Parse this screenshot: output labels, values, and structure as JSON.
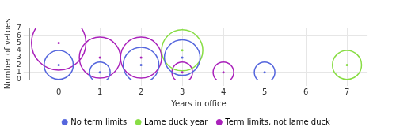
{
  "chart_data": {
    "type": "bubble",
    "x_label": "Years in office",
    "y_label": "Number of vetoes",
    "xlim": [
      -0.7,
      7.5
    ],
    "ylim": [
      0,
      7
    ],
    "xticks": [
      0,
      1,
      2,
      3,
      4,
      5,
      6,
      7
    ],
    "yticks": [
      0,
      1,
      2,
      3,
      4,
      5,
      6,
      7
    ],
    "grid": true,
    "legend": "bottom",
    "series": [
      {
        "name": "No term limits",
        "color": "#5566dd",
        "x": [
          0,
          1,
          2,
          3,
          5
        ],
        "values": [
          2,
          1,
          2,
          3,
          1
        ],
        "sizes": [
          2,
          1,
          3,
          3,
          1
        ]
      },
      {
        "name": "Lame duck year",
        "color": "#88dd44",
        "x": [
          3,
          7
        ],
        "values": [
          4,
          2
        ],
        "sizes": [
          4,
          2
        ]
      },
      {
        "name": "Term limits, not lame duck",
        "color": "#aa22bb",
        "x": [
          0,
          1,
          2,
          3,
          4
        ],
        "values": [
          5,
          3,
          3,
          1,
          1
        ],
        "sizes": [
          7,
          4,
          4,
          1,
          1
        ]
      }
    ]
  }
}
